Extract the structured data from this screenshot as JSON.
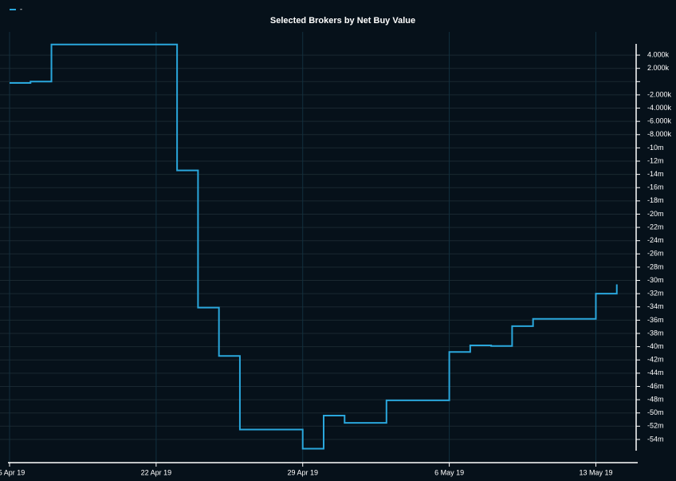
{
  "chart_data": {
    "type": "step-line",
    "title": "Selected Brokers by Net Buy Value",
    "x": [
      "2019-04-15",
      "2019-04-16",
      "2019-04-17",
      "2019-04-23",
      "2019-04-24",
      "2019-04-25",
      "2019-04-26",
      "2019-04-29",
      "2019-04-30",
      "2019-05-01",
      "2019-05-03",
      "2019-05-06",
      "2019-05-07",
      "2019-05-08",
      "2019-05-09",
      "2019-05-10",
      "2019-05-13",
      "2019-05-14"
    ],
    "series": [
      {
        "name": "-",
        "color": "#2aa7dc",
        "values": [
          -0.2,
          0,
          5.6,
          -13.4,
          -34.1,
          -41.4,
          -52.5,
          -55.4,
          -50.4,
          -51.5,
          -48.1,
          -40.8,
          -39.8,
          -39.9,
          -36.9,
          -35.8,
          -32.0,
          -30.6
        ]
      }
    ],
    "xlim": [
      "2019-04-15",
      "2019-05-15"
    ],
    "xticks": [
      {
        "value": "2019-04-15",
        "label": "15 Apr 19"
      },
      {
        "value": "2019-04-22",
        "label": "22 Apr 19"
      },
      {
        "value": "2019-04-29",
        "label": "29 Apr 19"
      },
      {
        "value": "2019-05-06",
        "label": "6 May 19"
      },
      {
        "value": "2019-05-13",
        "label": "13 May 19"
      }
    ],
    "ylim": [
      -57.5,
      7.5
    ],
    "yticks": [
      {
        "value": 4,
        "label": "4.000k"
      },
      {
        "value": 2,
        "label": "2.000k"
      },
      {
        "value": 0,
        "label": null
      },
      {
        "value": -2,
        "label": "-2.000k"
      },
      {
        "value": -4,
        "label": "-4.000k"
      },
      {
        "value": -6,
        "label": "-6.000k"
      },
      {
        "value": -8,
        "label": "-8.000k"
      },
      {
        "value": -10,
        "label": "-10m"
      },
      {
        "value": -12,
        "label": "-12m"
      },
      {
        "value": -14,
        "label": "-14m"
      },
      {
        "value": -16,
        "label": "-16m"
      },
      {
        "value": -18,
        "label": "-18m"
      },
      {
        "value": -20,
        "label": "-20m"
      },
      {
        "value": -22,
        "label": "-22m"
      },
      {
        "value": -24,
        "label": "-24m"
      },
      {
        "value": -26,
        "label": "-26m"
      },
      {
        "value": -28,
        "label": "-28m"
      },
      {
        "value": -30,
        "label": "-30m"
      },
      {
        "value": -32,
        "label": "-32m"
      },
      {
        "value": -34,
        "label": "-34m"
      },
      {
        "value": -36,
        "label": "-36m"
      },
      {
        "value": -38,
        "label": "-38m"
      },
      {
        "value": -40,
        "label": "-40m"
      },
      {
        "value": -42,
        "label": "-42m"
      },
      {
        "value": -44,
        "label": "-44m"
      },
      {
        "value": -46,
        "label": "-46m"
      },
      {
        "value": -48,
        "label": "-48m"
      },
      {
        "value": -50,
        "label": "-50m"
      },
      {
        "value": -52,
        "label": "-52m"
      },
      {
        "value": -54,
        "label": "-54m"
      }
    ],
    "grid": true,
    "legend": "top-left"
  }
}
